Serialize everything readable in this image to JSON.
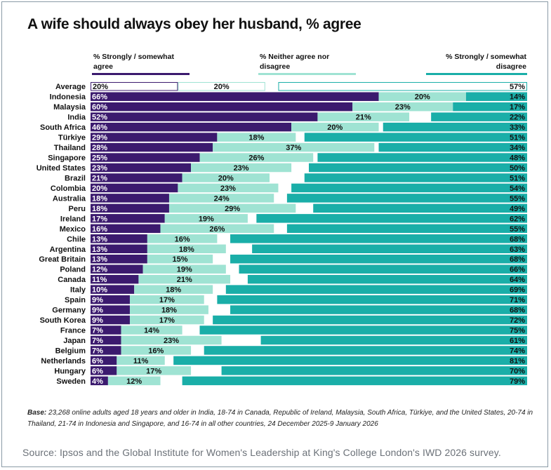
{
  "title": "A wife should always obey her husband, % agree",
  "base_label": "Base:",
  "base_text": "23,268 online adults aged 18 years and older in India, 18-74 in Canada, Republic of Ireland, Malaysia, South Africa, Türkiye, and the United States, 20-74 in Thailand, 21-74 in Indonesia and Singapore, and 16-74 in all other countries, 24 December 2025-9 January 2026",
  "source": "Source: Ipsos and the Global Institute for Women's Leadership at King's College London's IWD 2026 survey.",
  "colors": {
    "agree": "#3b1a6e",
    "neither": "#9fe3d3",
    "disagree": "#1aaea8"
  },
  "chart_data": {
    "type": "bar",
    "orientation": "horizontal-stacked",
    "series": [
      {
        "name": "% Strongly / somewhat agree",
        "values": [
          20,
          66,
          60,
          52,
          46,
          29,
          28,
          25,
          23,
          21,
          20,
          18,
          18,
          17,
          16,
          13,
          13,
          13,
          12,
          11,
          10,
          9,
          9,
          9,
          7,
          7,
          7,
          6,
          6,
          4
        ]
      },
      {
        "name": "% Neither agree nor disagree",
        "values": [
          20,
          20,
          23,
          21,
          20,
          18,
          37,
          26,
          23,
          20,
          23,
          24,
          29,
          19,
          26,
          16,
          18,
          15,
          19,
          21,
          18,
          17,
          18,
          17,
          14,
          23,
          16,
          11,
          17,
          12
        ]
      },
      {
        "name": "% Strongly / somewhat disagree",
        "values": [
          57,
          14,
          17,
          22,
          33,
          51,
          34,
          48,
          50,
          51,
          54,
          55,
          49,
          62,
          55,
          68,
          63,
          68,
          66,
          64,
          69,
          71,
          68,
          72,
          75,
          61,
          74,
          81,
          70,
          79
        ]
      }
    ],
    "categories": [
      "Average",
      "Indonesia",
      "Malaysia",
      "India",
      "South Africa",
      "Türkiye",
      "Thailand",
      "Singapore",
      "United States",
      "Brazil",
      "Colombia",
      "Australia",
      "Peru",
      "Ireland",
      "Mexico",
      "Chile",
      "Argentina",
      "Great Britain",
      "Poland",
      "Canada",
      "Italy",
      "Spain",
      "Germany",
      "South Korea",
      "France",
      "Japan",
      "Belgium",
      "Netherlands",
      "Hungary",
      "Sweden"
    ],
    "value_labels": {
      "agree": [
        "20%",
        "66%",
        "60%",
        "52%",
        "46%",
        "29%",
        "28%",
        "25%",
        "23%",
        "21%",
        "20%",
        "18%",
        "18%",
        "17%",
        "16%",
        "13%",
        "13%",
        "13%",
        "12%",
        "11%",
        "10%",
        "9%",
        "9%",
        "9%",
        "7%",
        "7%",
        "7%",
        "6%",
        "6%",
        "4%"
      ],
      "neither": [
        "20%",
        "20%",
        "23%",
        "21%",
        "20%",
        "18%",
        "37%",
        "26%",
        "23%",
        "20%",
        "23%",
        "24%",
        "29%",
        "19%",
        "26%",
        "16%",
        "18%",
        "15%",
        "19%",
        "21%",
        "18%",
        "17%",
        "18%",
        "17%",
        "14%",
        "23%",
        "16%",
        "11%",
        "17%",
        "12%"
      ],
      "disagree": [
        "57%",
        "14%",
        "17%",
        "22%",
        "33%",
        "51%",
        "34%",
        "48%",
        "50%",
        "51%",
        "54%",
        "55%",
        "49%",
        "62%",
        "55%",
        "68%",
        "63%",
        "68%",
        "66%",
        "64%",
        "69%",
        "71%",
        "68%",
        "72%",
        "75%",
        "61%",
        "74%",
        "81%",
        "70%",
        "79%"
      ]
    },
    "xlim": [
      0,
      100
    ]
  }
}
